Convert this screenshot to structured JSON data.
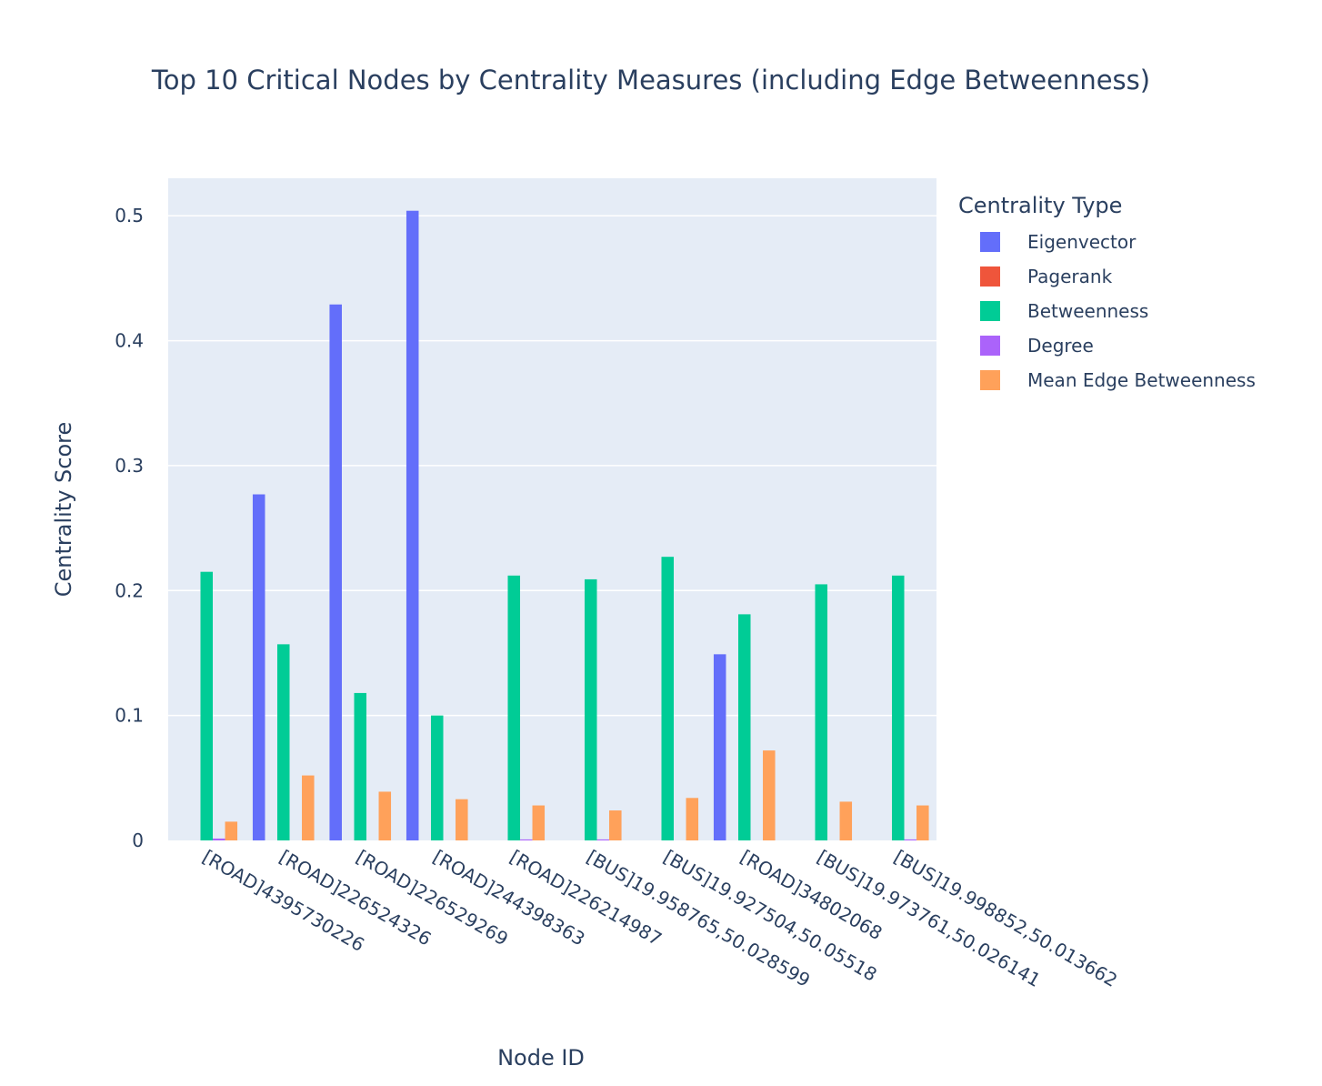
{
  "chart_data": {
    "type": "bar",
    "title": "Top 10 Critical Nodes by Centrality Measures (including Edge Betweenness)",
    "xlabel": "Node ID",
    "ylabel": "Centrality Score",
    "ylim": [
      0,
      0.53
    ],
    "yticks": [
      0,
      0.1,
      0.2,
      0.3,
      0.4,
      0.5
    ],
    "ytick_labels": [
      "0",
      "0.1",
      "0.2",
      "0.3",
      "0.4",
      "0.5"
    ],
    "grid": true,
    "legend_title": "Centrality Type",
    "legend_position": "right",
    "categories": [
      "[ROAD]4395730226",
      "[ROAD]226524326",
      "[ROAD]226529269",
      "[ROAD]244398363",
      "[ROAD]226214987",
      "[BUS]19.958765,50.028599",
      "[BUS]19.927504,50.05518",
      "[ROAD]34802068",
      "[BUS]19.973761,50.026141",
      "[BUS]19.998852,50.013662"
    ],
    "series": [
      {
        "name": "Eigenvector",
        "color": "#636efa",
        "values": [
          0.0,
          0.277,
          0.429,
          0.504,
          0.0,
          0.0,
          0.0,
          0.149,
          0.0,
          0.0
        ]
      },
      {
        "name": "Pagerank",
        "color": "#ef553b",
        "values": [
          0.0,
          0.0,
          0.0,
          0.0,
          0.0,
          0.0,
          0.0,
          0.0,
          0.0,
          0.0
        ]
      },
      {
        "name": "Betweenness",
        "color": "#00cc96",
        "values": [
          0.215,
          0.157,
          0.118,
          0.1,
          0.212,
          0.209,
          0.227,
          0.181,
          0.205,
          0.212
        ]
      },
      {
        "name": "Degree",
        "color": "#ab63fa",
        "values": [
          0.0015,
          0.0,
          0.0,
          0.0,
          0.0008,
          0.0008,
          0.0,
          0.0,
          0.0,
          0.0008
        ]
      },
      {
        "name": "Mean Edge Betweenness",
        "color": "#ffa15a",
        "values": [
          0.015,
          0.052,
          0.039,
          0.033,
          0.028,
          0.024,
          0.034,
          0.072,
          0.031,
          0.028
        ]
      }
    ]
  }
}
